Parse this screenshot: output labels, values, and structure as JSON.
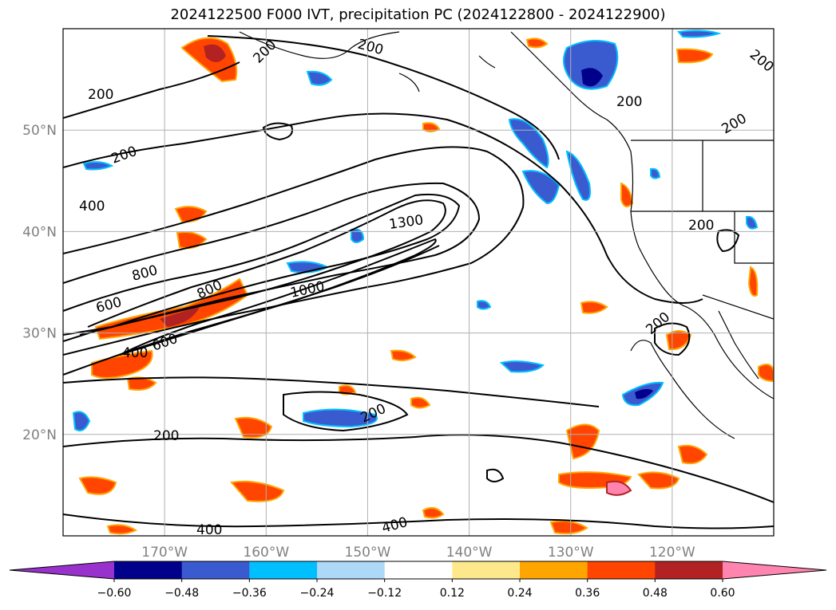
{
  "chart_data": {
    "type": "heatmap",
    "title": "2024122500 F000 IVT, precipitation PC (2024122800 - 2024122900)",
    "map_extent": {
      "lon": [
        -180,
        -110
      ],
      "lat": [
        10,
        60
      ]
    },
    "x_ticks": [
      "170°W",
      "160°W",
      "150°W",
      "140°W",
      "130°W",
      "120°W"
    ],
    "x_tick_values": [
      -170,
      -160,
      -150,
      -140,
      -130,
      -120
    ],
    "y_ticks": [
      "20°N",
      "30°N",
      "40°N",
      "50°N"
    ],
    "y_tick_values": [
      20,
      30,
      40,
      50
    ],
    "grid": true,
    "ivt_contour_labels": [
      "200",
      "400",
      "600",
      "800",
      "1000",
      "1300"
    ],
    "colorbar": {
      "boundaries": [
        -0.6,
        -0.48,
        -0.36,
        -0.24,
        -0.12,
        0.12,
        0.24,
        0.36,
        0.48,
        0.6
      ],
      "tick_labels": [
        "−0.60",
        "−0.48",
        "−0.36",
        "−0.24",
        "−0.12",
        "0.12",
        "0.24",
        "0.36",
        "0.48",
        "0.60"
      ],
      "colors": [
        "#9932cc",
        "#00008b",
        "#3a5bd0",
        "#00bfff",
        "#add8f7",
        "#ffffff",
        "#fde98c",
        "#ffa500",
        "#ff4500",
        "#b22222",
        "#ff85b0"
      ],
      "extend": "both"
    }
  }
}
